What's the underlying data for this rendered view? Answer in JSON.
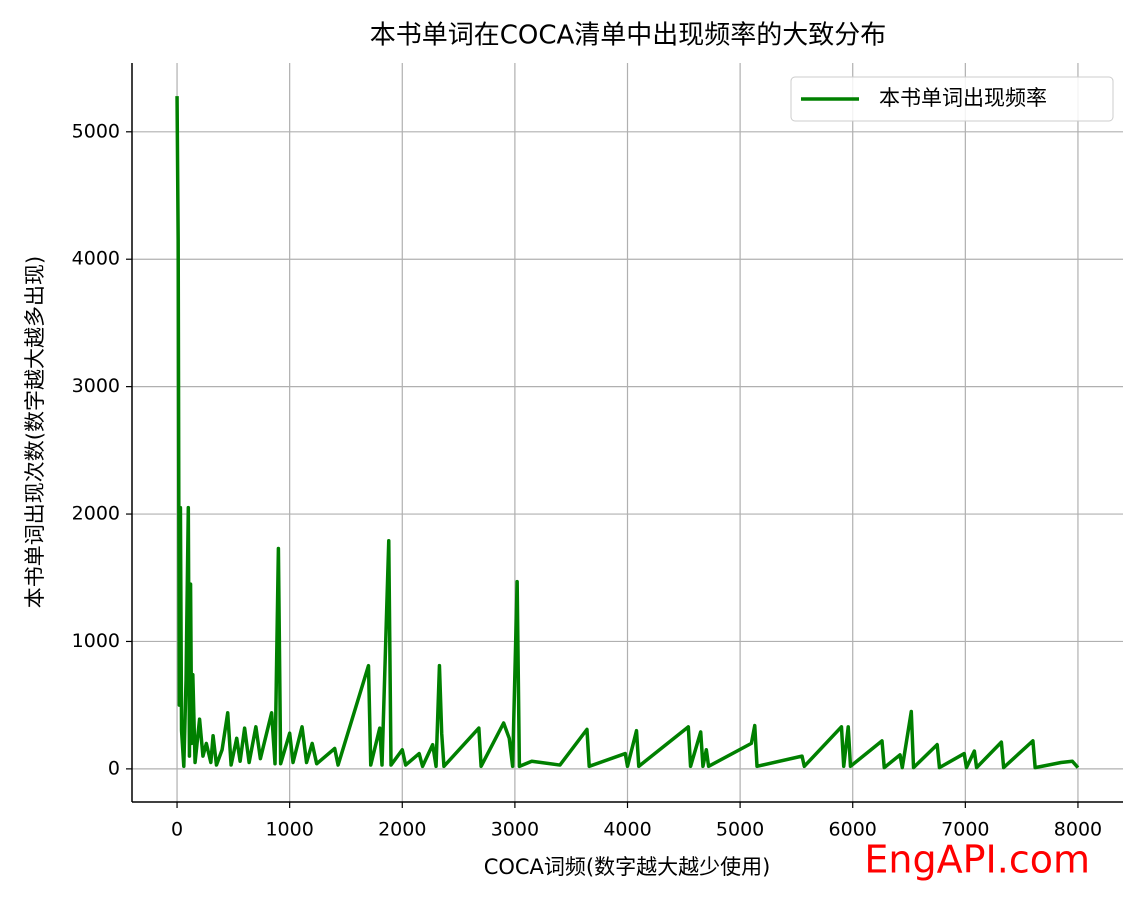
{
  "chart_data": {
    "type": "line",
    "title": "本书单词在COCA清单中出现频率的大致分布",
    "x_label": "COCA词频(数字越大越少使用)",
    "y_label": "本书单词出现次数(数字越大越多出现)",
    "watermark": "EngAPI.com",
    "x": [
      0,
      10,
      20,
      30,
      40,
      60,
      80,
      100,
      110,
      120,
      130,
      140,
      160,
      200,
      230,
      260,
      300,
      320,
      350,
      400,
      450,
      480,
      530,
      560,
      600,
      640,
      700,
      740,
      840,
      870,
      900,
      920,
      1000,
      1030,
      1110,
      1150,
      1200,
      1240,
      1400,
      1430,
      1700,
      1720,
      1800,
      1820,
      1880,
      1900,
      2000,
      2030,
      2150,
      2180,
      2270,
      2300,
      2330,
      2350,
      2370,
      2680,
      2700,
      2900,
      2950,
      2980,
      3020,
      3040,
      3150,
      3400,
      3640,
      3660,
      3980,
      4000,
      4080,
      4100,
      4540,
      4560,
      4650,
      4670,
      4700,
      4720,
      5100,
      5130,
      5150,
      5550,
      5570,
      5900,
      5920,
      5960,
      5980,
      6260,
      6280,
      6420,
      6440,
      6520,
      6540,
      6750,
      6770,
      6990,
      7010,
      7080,
      7100,
      7320,
      7340,
      7600,
      7620,
      7850,
      7950,
      8000
    ],
    "series": [
      {
        "name": "本书单词出现频率",
        "color": "#008000",
        "values": [
          5280,
          4150,
          500,
          2050,
          300,
          20,
          700,
          2050,
          100,
          1450,
          200,
          740,
          50,
          390,
          100,
          200,
          50,
          260,
          30,
          150,
          440,
          30,
          240,
          60,
          320,
          50,
          330,
          80,
          440,
          40,
          1730,
          40,
          280,
          50,
          330,
          50,
          200,
          40,
          160,
          30,
          810,
          30,
          320,
          30,
          1790,
          30,
          150,
          30,
          120,
          20,
          190,
          20,
          810,
          280,
          20,
          320,
          20,
          360,
          240,
          20,
          1470,
          20,
          60,
          30,
          310,
          20,
          120,
          20,
          300,
          20,
          330,
          20,
          290,
          20,
          150,
          20,
          200,
          340,
          20,
          100,
          20,
          330,
          20,
          330,
          20,
          220,
          10,
          110,
          10,
          450,
          10,
          190,
          10,
          120,
          10,
          140,
          10,
          210,
          10,
          220,
          10,
          50,
          60,
          10
        ]
      }
    ],
    "xlim": [
      -400,
      8400
    ],
    "ylim": [
      -260,
      5540
    ],
    "xticks": [
      0,
      1000,
      2000,
      3000,
      4000,
      5000,
      6000,
      7000,
      8000
    ],
    "yticks": [
      0,
      1000,
      2000,
      3000,
      4000,
      5000
    ],
    "grid": true,
    "legend": "upper right"
  }
}
